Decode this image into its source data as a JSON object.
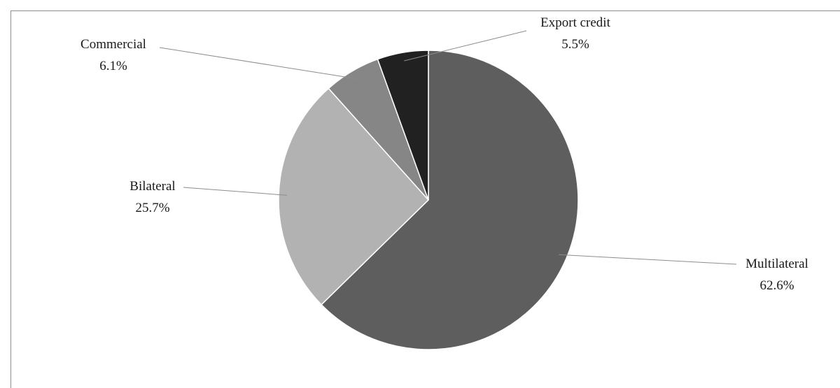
{
  "chart_data": {
    "type": "pie",
    "categories": [
      "Multilateral",
      "Bilateral",
      "Commercial",
      "Export credit"
    ],
    "values": [
      62.6,
      25.7,
      6.1,
      5.5
    ],
    "value_labels": [
      "62.6%",
      "25.7%",
      "6.1%",
      "5.5%"
    ],
    "colors": [
      "#5e5e5e",
      "#b2b2b2",
      "#868686",
      "#212121"
    ],
    "start": "12 o'clock",
    "direction": "clockwise",
    "legend": "none (data labels with leader lines)",
    "title": ""
  }
}
